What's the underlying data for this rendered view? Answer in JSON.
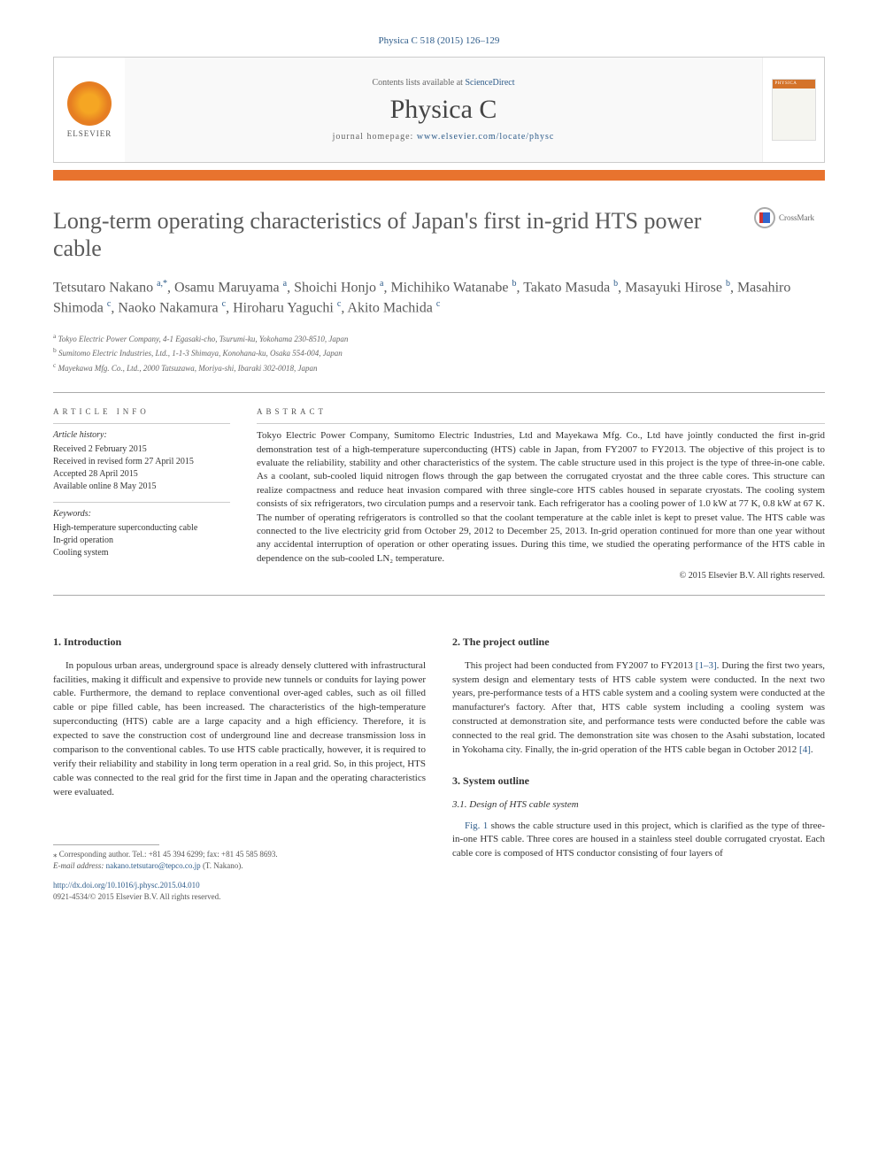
{
  "citation": "Physica C 518 (2015) 126–129",
  "banner": {
    "publisher": "ELSEVIER",
    "contents_prefix": "Contents lists available at ",
    "contents_link": "ScienceDirect",
    "journal": "Physica C",
    "homepage_prefix": "journal homepage: ",
    "homepage_url": "www.elsevier.com/locate/physc"
  },
  "crossmark_label": "CrossMark",
  "title": "Long-term operating characteristics of Japan's first in-grid HTS power cable",
  "authors_html": "Tetsutaro Nakano <sup>a,*</sup>, Osamu Maruyama <sup>a</sup>, Shoichi Honjo <sup>a</sup>, Michihiko Watanabe <sup>b</sup>, Takato Masuda <sup>b</sup>, Masayuki Hirose <sup>b</sup>, Masahiro Shimoda <sup>c</sup>, Naoko Nakamura <sup>c</sup>, Hiroharu Yaguchi <sup>c</sup>, Akito Machida <sup>c</sup>",
  "affiliations": [
    {
      "sup": "a",
      "text": "Tokyo Electric Power Company, 4-1 Egasaki-cho, Tsurumi-ku, Yokohama 230-8510, Japan"
    },
    {
      "sup": "b",
      "text": "Sumitomo Electric Industries, Ltd., 1-1-3 Shimaya, Konohana-ku, Osaka 554-004, Japan"
    },
    {
      "sup": "c",
      "text": "Mayekawa Mfg. Co., Ltd., 2000 Tatsuzawa, Moriya-shi, Ibaraki 302-0018, Japan"
    }
  ],
  "article_info": {
    "heading": "ARTICLE INFO",
    "history_label": "Article history:",
    "history": [
      "Received 2 February 2015",
      "Received in revised form 27 April 2015",
      "Accepted 28 April 2015",
      "Available online 8 May 2015"
    ],
    "keywords_label": "Keywords:",
    "keywords": [
      "High-temperature superconducting cable",
      "In-grid operation",
      "Cooling system"
    ]
  },
  "abstract": {
    "heading": "ABSTRACT",
    "text": "Tokyo Electric Power Company, Sumitomo Electric Industries, Ltd and Mayekawa Mfg. Co., Ltd have jointly conducted the first in-grid demonstration test of a high-temperature superconducting (HTS) cable in Japan, from FY2007 to FY2013. The objective of this project is to evaluate the reliability, stability and other characteristics of the system. The cable structure used in this project is the type of three-in-one cable. As a coolant, sub-cooled liquid nitrogen flows through the gap between the corrugated cryostat and the three cable cores. This structure can realize compactness and reduce heat invasion compared with three single-core HTS cables housed in separate cryostats. The cooling system consists of six refrigerators, two circulation pumps and a reservoir tank. Each refrigerator has a cooling power of 1.0 kW at 77 K, 0.8 kW at 67 K. The number of operating refrigerators is controlled so that the coolant temperature at the cable inlet is kept to preset value. The HTS cable was connected to the live electricity grid from October 29, 2012 to December 25, 2013. In-grid operation continued for more than one year without any accidental interruption of operation or other operating issues. During this time, we studied the operating performance of the HTS cable in dependence on the sub-cooled LN₂ temperature.",
    "copyright": "© 2015 Elsevier B.V. All rights reserved."
  },
  "sections": {
    "s1": {
      "heading": "1. Introduction",
      "body": "In populous urban areas, underground space is already densely cluttered with infrastructural facilities, making it difficult and expensive to provide new tunnels or conduits for laying power cable. Furthermore, the demand to replace conventional over-aged cables, such as oil filled cable or pipe filled cable, has been increased. The characteristics of the high-temperature superconducting (HTS) cable are a large capacity and a high efficiency. Therefore, it is expected to save the construction cost of underground line and decrease transmission loss in comparison to the conventional cables. To use HTS cable practically, however, it is required to verify their reliability and stability in long term operation in a real grid. So, in this project, HTS cable was connected to the real grid for the first time in Japan and the operating characteristics were evaluated."
    },
    "s2": {
      "heading": "2. The project outline",
      "body_pre": "This project had been conducted from FY2007 to FY2013 ",
      "ref1": "[1–3]",
      "body_mid": ". During the first two years, system design and elementary tests of HTS cable system were conducted. In the next two years, pre-performance tests of a HTS cable system and a cooling system were conducted at the manufacturer's factory. After that, HTS cable system including a cooling system was constructed at demonstration site, and performance tests were conducted before the cable was connected to the real grid. The demonstration site was chosen to the Asahi substation, located in Yokohama city. Finally, the in-grid operation of the HTS cable began in October 2012 ",
      "ref2": "[4]",
      "body_post": "."
    },
    "s3": {
      "heading": "3. System outline",
      "sub1_heading": "3.1. Design of HTS cable system",
      "sub1_pre": "",
      "sub1_fig": "Fig. 1",
      "sub1_body": " shows the cable structure used in this project, which is clarified as the type of three-in-one HTS cable. Three cores are housed in a stainless steel double corrugated cryostat. Each cable core is composed of HTS conductor consisting of four layers of"
    }
  },
  "footer": {
    "corresponding": "⁎ Corresponding author. Tel.: +81 45 394 6299; fax: +81 45 585 8693.",
    "email_label": "E-mail address: ",
    "email": "nakano.tetsutaro@tepco.co.jp",
    "email_suffix": " (T. Nakano).",
    "doi_url": "http://dx.doi.org/10.1016/j.physc.2015.04.010",
    "issn_line": "0921-4534/© 2015 Elsevier B.V. All rights reserved."
  }
}
